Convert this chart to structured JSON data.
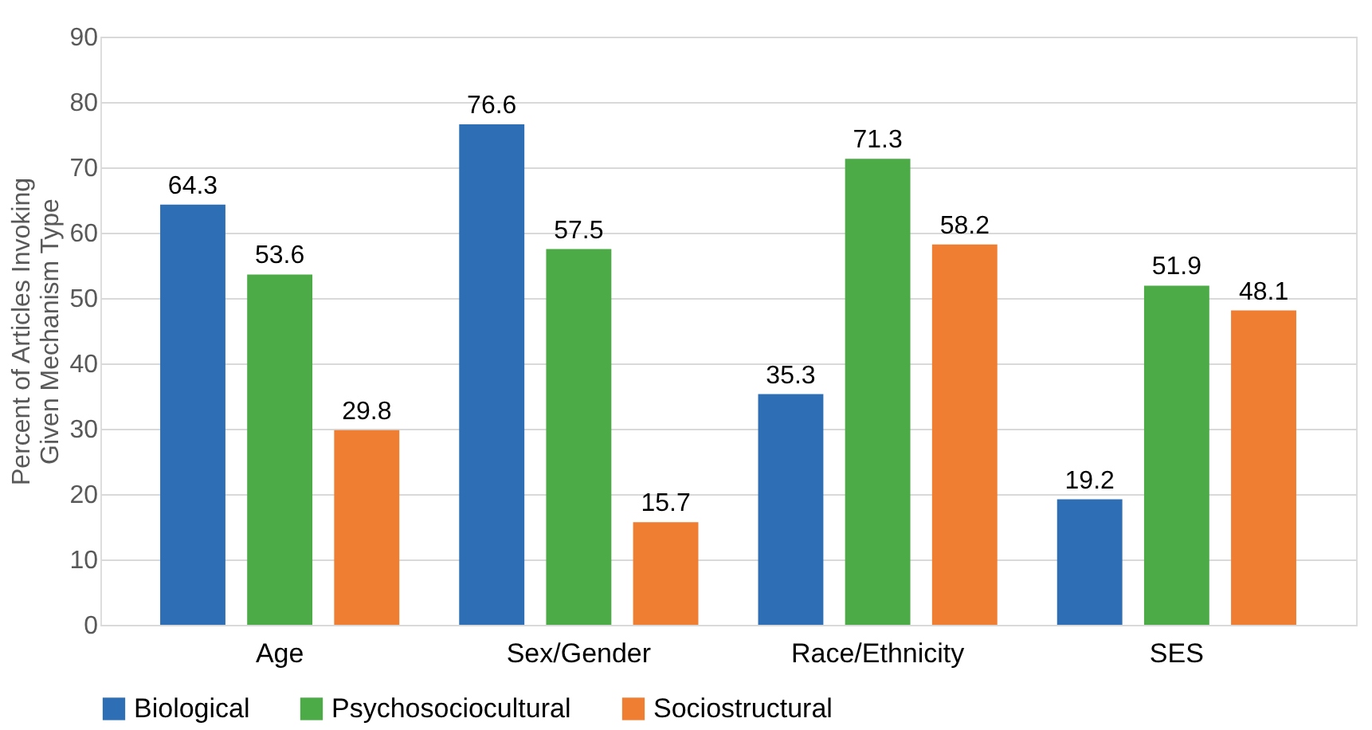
{
  "chart_data": {
    "type": "bar",
    "ylabel": "Percent of Articles Invoking\nGiven Mechanism Type",
    "categories": [
      "Age",
      "Sex/Gender",
      "Race/Ethnicity",
      "SES"
    ],
    "series": [
      {
        "name": "Biological",
        "color": "#2e6eb5",
        "values": [
          64.3,
          76.6,
          35.3,
          19.2
        ]
      },
      {
        "name": "Psychosociocultural",
        "color": "#4cab47",
        "values": [
          53.6,
          57.5,
          71.3,
          51.9
        ]
      },
      {
        "name": "Sociostructural",
        "color": "#ef7d32",
        "values": [
          29.8,
          15.7,
          58.2,
          48.1
        ]
      }
    ],
    "ylim": [
      0,
      90
    ],
    "yticks": [
      0,
      10,
      20,
      30,
      40,
      50,
      60,
      70,
      80,
      90
    ],
    "grid": "y",
    "legend": "bottom",
    "data_labels": true
  }
}
